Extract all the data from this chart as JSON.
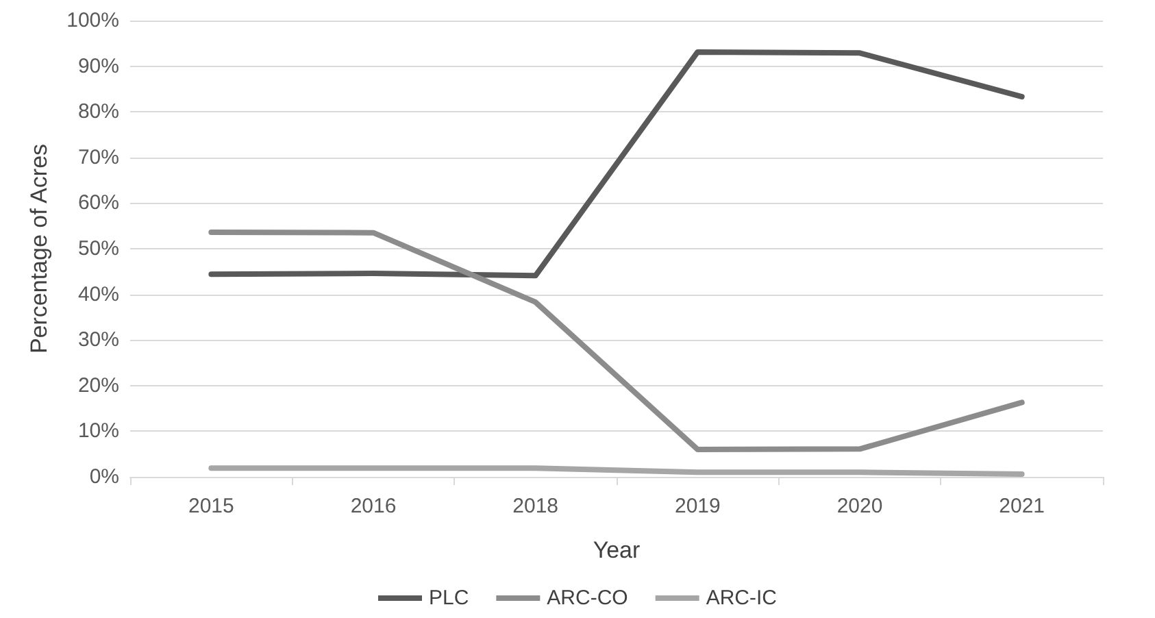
{
  "chart_data": {
    "type": "line",
    "xlabel": "Year",
    "ylabel": "Percentage of Acres",
    "categories": [
      "2015",
      "2016",
      "2018",
      "2019",
      "2020",
      "2021"
    ],
    "series": [
      {
        "name": "PLC",
        "color": "#595959",
        "values": [
          44.4,
          44.6,
          44.1,
          93.1,
          92.9,
          83.3
        ]
      },
      {
        "name": "ARC-CO",
        "color": "#8c8c8c",
        "values": [
          53.6,
          53.5,
          38.3,
          6.0,
          6.1,
          16.3
        ]
      },
      {
        "name": "ARC-IC",
        "color": "#a6a6a6",
        "values": [
          1.9,
          1.9,
          1.9,
          1.0,
          1.0,
          0.6
        ]
      }
    ],
    "ylim": [
      0,
      100
    ],
    "yticks": [
      {
        "value": 0,
        "label": "0%"
      },
      {
        "value": 10,
        "label": "10%"
      },
      {
        "value": 20,
        "label": "20%"
      },
      {
        "value": 30,
        "label": "30%"
      },
      {
        "value": 40,
        "label": "40%"
      },
      {
        "value": 50,
        "label": "50%"
      },
      {
        "value": 60,
        "label": "60%"
      },
      {
        "value": 70,
        "label": "70%"
      },
      {
        "value": 80,
        "label": "80%"
      },
      {
        "value": 90,
        "label": "90%"
      },
      {
        "value": 100,
        "label": "100%"
      }
    ],
    "grid": "y",
    "legend": "bottom",
    "marker": "none",
    "line_style": "solid"
  }
}
